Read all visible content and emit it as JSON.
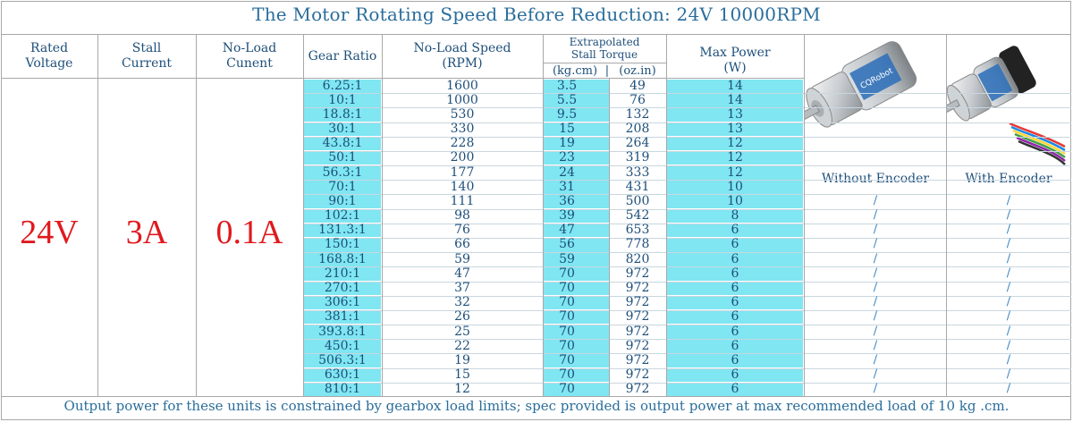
{
  "title": "The Motor Rotating Speed Before Reduction: 24V 10000RPM",
  "headers": {
    "rated_voltage": [
      "Rated",
      "Voltage"
    ],
    "stall_current": [
      "Stall",
      "Current"
    ],
    "no_load_current": [
      "No-Load",
      "Cunent"
    ],
    "gear_ratio": "Gear Ratio",
    "no_load_speed": [
      "No-Load Speed",
      "(RPM)"
    ],
    "stall_torque": [
      "Extrapolated",
      "Stall Torque"
    ],
    "torque_kg": "(kg.cm)",
    "torque_sep": "|",
    "torque_oz": "(oz.in)",
    "max_power": [
      "Max Power",
      "(W)"
    ],
    "without_encoder": "Without Encoder",
    "with_encoder": "With Encoder"
  },
  "values": {
    "rated_voltage": "24V",
    "stall_current": "3A",
    "no_load_current": "0.1A"
  },
  "rows": [
    {
      "ratio": "6.25:1",
      "speed": "1600",
      "kg": "3.5",
      "oz": "49",
      "power": "14"
    },
    {
      "ratio": "10:1",
      "speed": "1000",
      "kg": "5.5",
      "oz": "76",
      "power": "14"
    },
    {
      "ratio": "18.8:1",
      "speed": "530",
      "kg": "9.5",
      "oz": "132",
      "power": "13"
    },
    {
      "ratio": "30:1",
      "speed": "330",
      "kg": "15",
      "oz": "208",
      "power": "13"
    },
    {
      "ratio": "43.8:1",
      "speed": "228",
      "kg": "19",
      "oz": "264",
      "power": "12"
    },
    {
      "ratio": "50:1",
      "speed": "200",
      "kg": "23",
      "oz": "319",
      "power": "12"
    },
    {
      "ratio": "56.3:1",
      "speed": "177",
      "kg": "24",
      "oz": "333",
      "power": "12"
    },
    {
      "ratio": "70:1",
      "speed": "140",
      "kg": "31",
      "oz": "431",
      "power": "10"
    },
    {
      "ratio": "90:1",
      "speed": "111",
      "kg": "36",
      "oz": "500",
      "power": "10",
      "without": "/",
      "with": "/"
    },
    {
      "ratio": "102:1",
      "speed": "98",
      "kg": "39",
      "oz": "542",
      "power": "8",
      "without": "/",
      "with": "/"
    },
    {
      "ratio": "131.3:1",
      "speed": "76",
      "kg": "47",
      "oz": "653",
      "power": "6",
      "without": "/",
      "with": "/"
    },
    {
      "ratio": "150:1",
      "speed": "66",
      "kg": "56",
      "oz": "778",
      "power": "6",
      "without": "/",
      "with": "/"
    },
    {
      "ratio": "168.8:1",
      "speed": "59",
      "kg": "59",
      "oz": "820",
      "power": "6",
      "without": "/",
      "with": "/"
    },
    {
      "ratio": "210:1",
      "speed": "47",
      "kg": "70",
      "oz": "972",
      "power": "6",
      "without": "/",
      "with": "/"
    },
    {
      "ratio": "270:1",
      "speed": "37",
      "kg": "70",
      "oz": "972",
      "power": "6",
      "without": "/",
      "with": "/"
    },
    {
      "ratio": "306:1",
      "speed": "32",
      "kg": "70",
      "oz": "972",
      "power": "6",
      "without": "/",
      "with": "/"
    },
    {
      "ratio": "381:1",
      "speed": "26",
      "kg": "70",
      "oz": "972",
      "power": "6",
      "without": "/",
      "with": "/"
    },
    {
      "ratio": "393.8:1",
      "speed": "25",
      "kg": "70",
      "oz": "972",
      "power": "6",
      "without": "/",
      "with": "/"
    },
    {
      "ratio": "450:1",
      "speed": "22",
      "kg": "70",
      "oz": "972",
      "power": "6",
      "without": "/",
      "with": "/"
    },
    {
      "ratio": "506.3:1",
      "speed": "19",
      "kg": "70",
      "oz": "972",
      "power": "6",
      "without": "/",
      "with": "/"
    },
    {
      "ratio": "630:1",
      "speed": "15",
      "kg": "70",
      "oz": "972",
      "power": "6",
      "without": "/",
      "with": "/"
    },
    {
      "ratio": "810:1",
      "speed": "12",
      "kg": "70",
      "oz": "972",
      "power": "6",
      "without": "/",
      "with": "/"
    }
  ],
  "footer": "Output power for these units is constrained by gearbox load limits; spec provided is output power at max recommended load of 10 kg .cm.",
  "images": {
    "without_encoder": "gear-motor-icon",
    "with_encoder": "gear-motor-encoder-icon",
    "brand_text": "CQRobot"
  },
  "colors": {
    "title": "#2a6d9b",
    "text": "#1e4f7a",
    "highlight": "#7fe6f2",
    "big_value": "#e0191e",
    "slash": "#2e7fc0"
  }
}
